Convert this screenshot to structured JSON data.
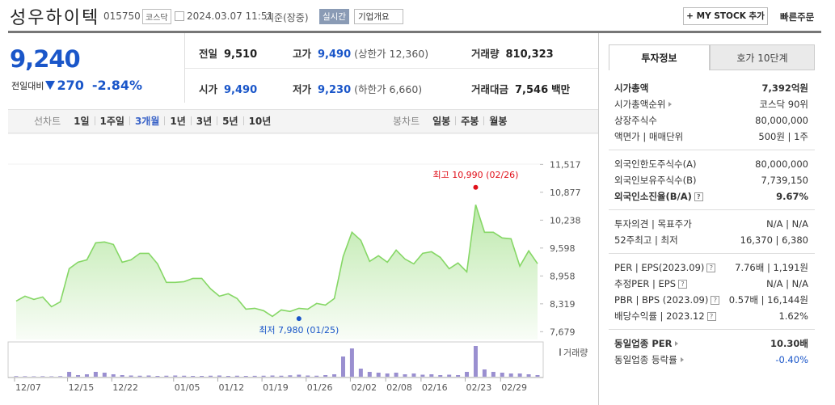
{
  "header": {
    "name": "성우하이텍",
    "code": "015750",
    "market": "코스닥",
    "datetime": "2024.03.07 11:51",
    "basis": "기준(장중)",
    "realtime": "실시간",
    "company_info": "기업개요",
    "my_stock": "+ MY STOCK 추가",
    "quick_order": "빠른주문"
  },
  "price": {
    "current": "9,240",
    "change_label": "전일대비",
    "change": "270",
    "change_pct": "-2.84%"
  },
  "summary": [
    {
      "label": "전일",
      "value": "9,510",
      "color": "#222"
    },
    {
      "label": "고가",
      "value": "9,490",
      "note": "(상한가 12,360)",
      "color": "#1a56c9"
    },
    {
      "label": "거래량",
      "value": "810,323",
      "color": "#222"
    },
    {
      "label": "시가",
      "value": "9,490",
      "color": "#1a56c9"
    },
    {
      "label": "저가",
      "value": "9,230",
      "note": "(하한가 6,660)",
      "color": "#1a56c9"
    },
    {
      "label": "거래대금",
      "value": "7,546",
      "note": "백만",
      "color": "#222"
    }
  ],
  "tabs": {
    "line_label": "선차트",
    "line_items": [
      "1일",
      "1주일",
      "3개월",
      "1년",
      "3년",
      "5년",
      "10년"
    ],
    "line_selected": 2,
    "candle_label": "봉차트",
    "candle_items": [
      "일봉",
      "주봉",
      "월봉"
    ]
  },
  "chart_data": {
    "type": "line",
    "color": "#86d766",
    "ylim": [
      7500,
      11870
    ],
    "yticks": [
      {
        "value": 11517,
        "label": "11,517"
      },
      {
        "value": 10877,
        "label": "10,877"
      },
      {
        "value": 10238,
        "label": "10,238"
      },
      {
        "value": 9598,
        "label": "9,598"
      },
      {
        "value": 8958,
        "label": "8,958"
      },
      {
        "value": 8319,
        "label": "8,319"
      },
      {
        "value": 7679,
        "label": "7,679"
      }
    ],
    "categories": [
      "12/07",
      null,
      null,
      null,
      null,
      null,
      "12/15",
      null,
      null,
      null,
      null,
      "12/22",
      null,
      null,
      null,
      null,
      null,
      null,
      "01/05",
      null,
      null,
      null,
      null,
      "01/12",
      null,
      null,
      null,
      null,
      "01/19",
      null,
      null,
      null,
      null,
      "01/26",
      null,
      null,
      null,
      null,
      "02/02",
      null,
      null,
      null,
      "02/08",
      null,
      null,
      null,
      "02/16",
      null,
      null,
      null,
      null,
      "02/23",
      null,
      null,
      null,
      "02/29",
      null,
      null,
      null,
      null
    ],
    "values": [
      8383,
      8494,
      8420,
      8476,
      8253,
      8365,
      9125,
      9273,
      9329,
      9718,
      9737,
      9681,
      9273,
      9329,
      9477,
      9477,
      9236,
      8810,
      8810,
      8828,
      8902,
      8902,
      8662,
      8494,
      8550,
      8440,
      8198,
      8216,
      8161,
      8031,
      8179,
      8143,
      8216,
      8198,
      8327,
      8290,
      8440,
      9403,
      9960,
      9774,
      9292,
      9422,
      9273,
      9551,
      9347,
      9236,
      9477,
      9514,
      9384,
      9125,
      9255,
      9051,
      10590,
      9960,
      9960,
      9830,
      9811,
      9181,
      9533,
      9240
    ],
    "high": {
      "label": "최고 10,990 (02/26)",
      "value": 10990,
      "category_index": 52,
      "color": "#e0101a"
    },
    "low": {
      "label": "최저 7,980 (01/25)",
      "value": 7980,
      "category_index": 32,
      "color": "#1a56c9"
    },
    "volume": {
      "name": "거래량",
      "color": "#9a8fd0",
      "values": [
        60000,
        50000,
        40000,
        50000,
        40000,
        60000,
        480000,
        160000,
        240000,
        480000,
        400000,
        240000,
        160000,
        120000,
        100000,
        120000,
        80000,
        100000,
        120000,
        100000,
        80000,
        80000,
        100000,
        120000,
        80000,
        100000,
        80000,
        90000,
        100000,
        120000,
        100000,
        140000,
        200000,
        120000,
        100000,
        160000,
        240000,
        2000000,
        2800000,
        800000,
        480000,
        400000,
        320000,
        400000,
        240000,
        320000,
        200000,
        240000,
        160000,
        200000,
        160000,
        480000,
        3040000,
        720000,
        480000,
        400000,
        320000,
        320000,
        240000,
        160000
      ]
    }
  },
  "side": {
    "tabs": [
      "투자정보",
      "호가 10단계"
    ],
    "groups": [
      [
        {
          "label": "시가총액",
          "value": "7,392억원",
          "bold": true
        },
        {
          "label": "시가총액순위",
          "link": true,
          "value": "코스닥 90위"
        },
        {
          "label": "상장주식수",
          "value": "80,000,000"
        },
        {
          "label": "액면가 | 매매단위",
          "value": "500원 | 1주"
        }
      ],
      [
        {
          "label": "외국인한도주식수(A)",
          "value": "80,000,000"
        },
        {
          "label": "외국인보유주식수(B)",
          "value": "7,739,150"
        },
        {
          "label": "외국인소진율(B/A)",
          "help": "?",
          "value": "9.67%",
          "bold": true
        }
      ],
      [
        {
          "label": "투자의견 | 목표주가",
          "value": "N/A | N/A"
        },
        {
          "label": "52주최고 | 최저",
          "value": "16,370 | 6,380"
        }
      ],
      [
        {
          "label": "PER | EPS(2023.09)",
          "help": "?",
          "value": "7.76배 | 1,191원"
        },
        {
          "label": "추정PER | EPS",
          "help": "?",
          "value": "N/A | N/A"
        },
        {
          "label": "PBR | BPS (2023.09)",
          "help": "?",
          "value": "0.57배 | 16,144원"
        },
        {
          "label": "배당수익률 | 2023.12",
          "help": "?",
          "value": "1.62%"
        }
      ],
      [
        {
          "label": "동일업종 PER",
          "link": true,
          "value": "10.30배",
          "bold": true
        },
        {
          "label": "동일업종 등락률",
          "link": true,
          "value": "-0.40%",
          "color": "#1a56c9"
        }
      ]
    ]
  }
}
